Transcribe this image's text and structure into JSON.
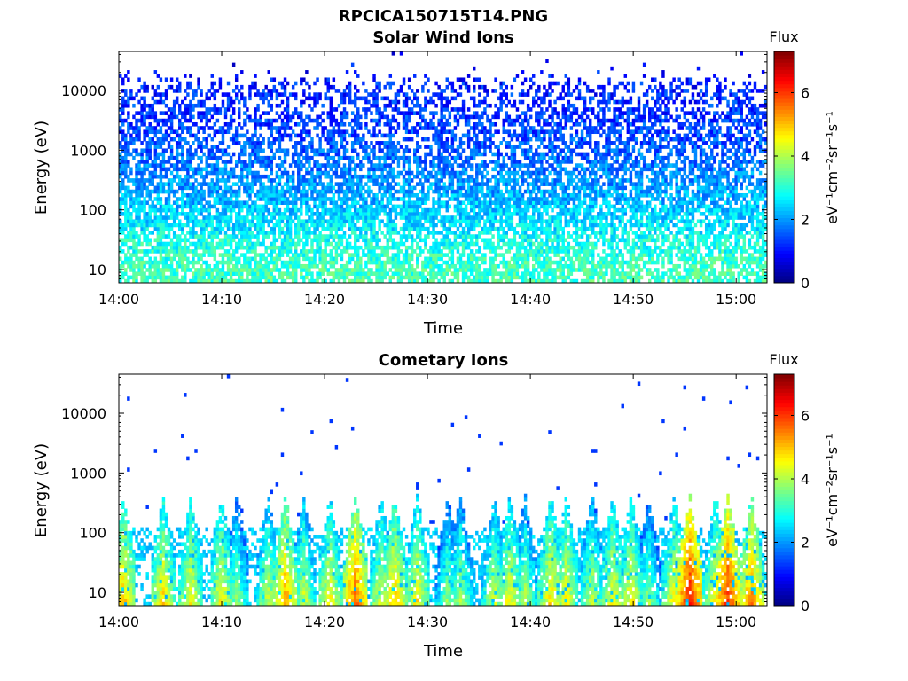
{
  "figure_title": "RPCICA150715T14.PNG",
  "colormap": [
    "#00007f",
    "#0000ff",
    "#007fff",
    "#00ffff",
    "#7fff7f",
    "#ffff00",
    "#ff7f00",
    "#ff0000",
    "#7f0000"
  ],
  "chart_data": [
    {
      "type": "heatmap",
      "title": "Solar Wind Ions",
      "xlabel": "Time",
      "ylabel": "Energy (eV)",
      "x_ticks": [
        "14:00",
        "14:10",
        "14:20",
        "14:30",
        "14:40",
        "14:50",
        "15:00"
      ],
      "x_range_minutes": [
        0,
        63
      ],
      "y_scale": "log",
      "y_ticks": [
        10,
        100,
        1000,
        10000
      ],
      "y_tick_labels": [
        "10",
        "100",
        "1000",
        "10000"
      ],
      "y_range": [
        6,
        45000
      ],
      "colorbar": {
        "label": "Flux",
        "unit_label": "eV⁻¹cm⁻²sr⁻¹s⁻¹",
        "ticks": [
          0,
          2,
          4,
          6
        ],
        "range": [
          0,
          7.3
        ]
      },
      "intensity_profile": {
        "log_energy_points": [
          0.78,
          1.0,
          1.3,
          1.5,
          1.7,
          2.0,
          2.3,
          2.6,
          3.0,
          3.3,
          3.6,
          3.9,
          4.15,
          4.35
        ],
        "flux": [
          3.2,
          3.2,
          3.0,
          2.9,
          2.6,
          2.4,
          2.1,
          1.9,
          1.6,
          1.4,
          1.3,
          1.2,
          1.1,
          1.0
        ],
        "fill_fraction": [
          0.75,
          0.75,
          0.7,
          0.7,
          0.75,
          0.8,
          0.72,
          0.65,
          0.6,
          0.55,
          0.55,
          0.45,
          0.25,
          0.01
        ]
      }
    },
    {
      "type": "heatmap",
      "title": "Cometary Ions",
      "xlabel": "Time",
      "ylabel": "Energy (eV)",
      "x_ticks": [
        "14:00",
        "14:10",
        "14:20",
        "14:30",
        "14:40",
        "14:50",
        "15:00"
      ],
      "x_range_minutes": [
        0,
        63
      ],
      "y_scale": "log",
      "y_ticks": [
        10,
        100,
        1000,
        10000
      ],
      "y_tick_labels": [
        "10",
        "100",
        "1000",
        "10000"
      ],
      "y_range": [
        6,
        45000
      ],
      "colorbar": {
        "label": "Flux",
        "unit_label": "eV⁻¹cm⁻²sr⁻¹s⁻¹",
        "ticks": [
          0,
          2,
          4,
          6
        ],
        "range": [
          0,
          7.3
        ]
      },
      "burst_minutes": [
        0.5,
        4.3,
        7.0,
        10.0,
        11.5,
        14.5,
        16.2,
        18.0,
        20.5,
        23.0,
        25.5,
        26.8,
        29.0,
        32.0,
        33.2,
        36.5,
        38.0,
        39.5,
        42.0,
        43.5,
        46.0,
        48.0,
        49.8,
        51.5,
        54.0,
        55.5,
        58.0,
        59.2,
        61.5
      ],
      "burst_peak_flux": [
        5.0,
        4.8,
        4.6,
        4.6,
        3.8,
        4.2,
        5.2,
        4.2,
        4.6,
        5.6,
        4.4,
        5.0,
        4.6,
        3.8,
        4.0,
        4.2,
        4.6,
        4.0,
        4.8,
        4.6,
        4.2,
        4.6,
        4.6,
        3.8,
        4.6,
        6.2,
        4.6,
        6.0,
        5.4
      ]
    }
  ]
}
